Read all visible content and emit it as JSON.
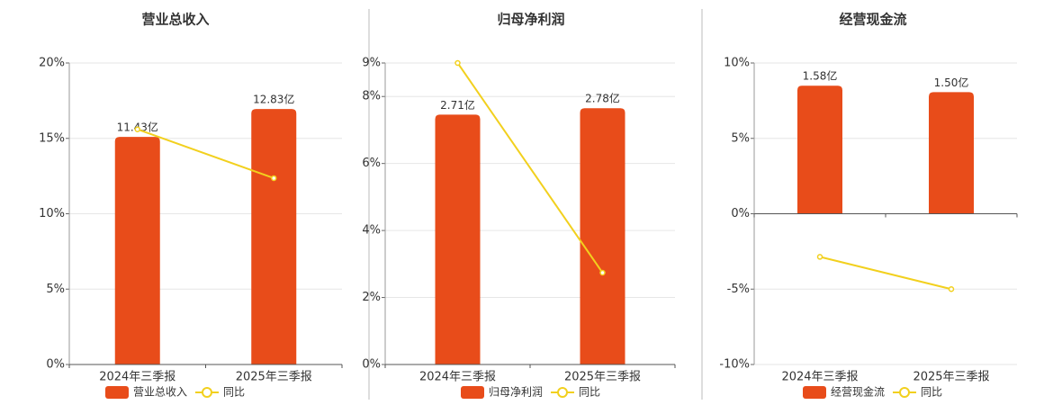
{
  "chart_data": [
    {
      "type": "combo",
      "title": "营业总收入",
      "categories": [
        "2024年三季报",
        "2025年三季报"
      ],
      "series": [
        {
          "name": "营业总收入",
          "type": "bar",
          "color": "#e84c1a",
          "axis": "y2",
          "values": [
            11.43,
            12.83
          ],
          "value_labels": [
            "11.43亿",
            "12.83亿"
          ]
        },
        {
          "name": "同比",
          "type": "line",
          "color": "#f2d01e",
          "values": [
            15.6,
            12.36
          ]
        }
      ],
      "ylim": [
        0,
        20
      ],
      "yticks": [
        {
          "value": 0,
          "label": "0%"
        },
        {
          "value": 5,
          "label": "5%"
        },
        {
          "value": 10,
          "label": "10%"
        },
        {
          "value": 15,
          "label": "15%"
        },
        {
          "value": 20,
          "label": "20%"
        }
      ],
      "y2lim": [
        0,
        15.14
      ],
      "grid": true
    },
    {
      "type": "combo",
      "title": "归母净利润",
      "categories": [
        "2024年三季报",
        "2025年三季报"
      ],
      "series": [
        {
          "name": "归母净利润",
          "type": "bar",
          "color": "#e84c1a",
          "axis": "y2",
          "values": [
            2.71,
            2.78
          ],
          "value_labels": [
            "2.71亿",
            "2.78亿"
          ]
        },
        {
          "name": "同比",
          "type": "line",
          "color": "#f2d01e",
          "values": [
            9.0,
            2.74
          ]
        }
      ],
      "ylim": [
        0,
        9
      ],
      "yticks": [
        {
          "value": 0,
          "label": "0%"
        },
        {
          "value": 2,
          "label": "2%"
        },
        {
          "value": 4,
          "label": "4%"
        },
        {
          "value": 6,
          "label": "6%"
        },
        {
          "value": 8,
          "label": "8%"
        },
        {
          "value": 9,
          "label": "9%"
        }
      ],
      "y2lim": [
        0,
        3.27
      ],
      "grid": true
    },
    {
      "type": "combo",
      "title": "经营现金流",
      "categories": [
        "2024年三季报",
        "2025年三季报"
      ],
      "series": [
        {
          "name": "经营现金流",
          "type": "bar",
          "color": "#e84c1a",
          "axis": "y2",
          "values": [
            1.58,
            1.5
          ],
          "value_labels": [
            "1.58亿",
            "1.50亿"
          ]
        },
        {
          "name": "同比",
          "type": "line",
          "color": "#f2d01e",
          "values": [
            -2.86,
            -5.0
          ]
        }
      ],
      "ylim": [
        -10,
        10
      ],
      "yticks": [
        {
          "value": -10,
          "label": "-10%"
        },
        {
          "value": -5,
          "label": "-5%"
        },
        {
          "value": 0,
          "label": "0%"
        },
        {
          "value": 5,
          "label": "5%"
        },
        {
          "value": 10,
          "label": "10%"
        }
      ],
      "y2lim": [
        -1.86,
        1.86
      ],
      "grid": true
    }
  ]
}
